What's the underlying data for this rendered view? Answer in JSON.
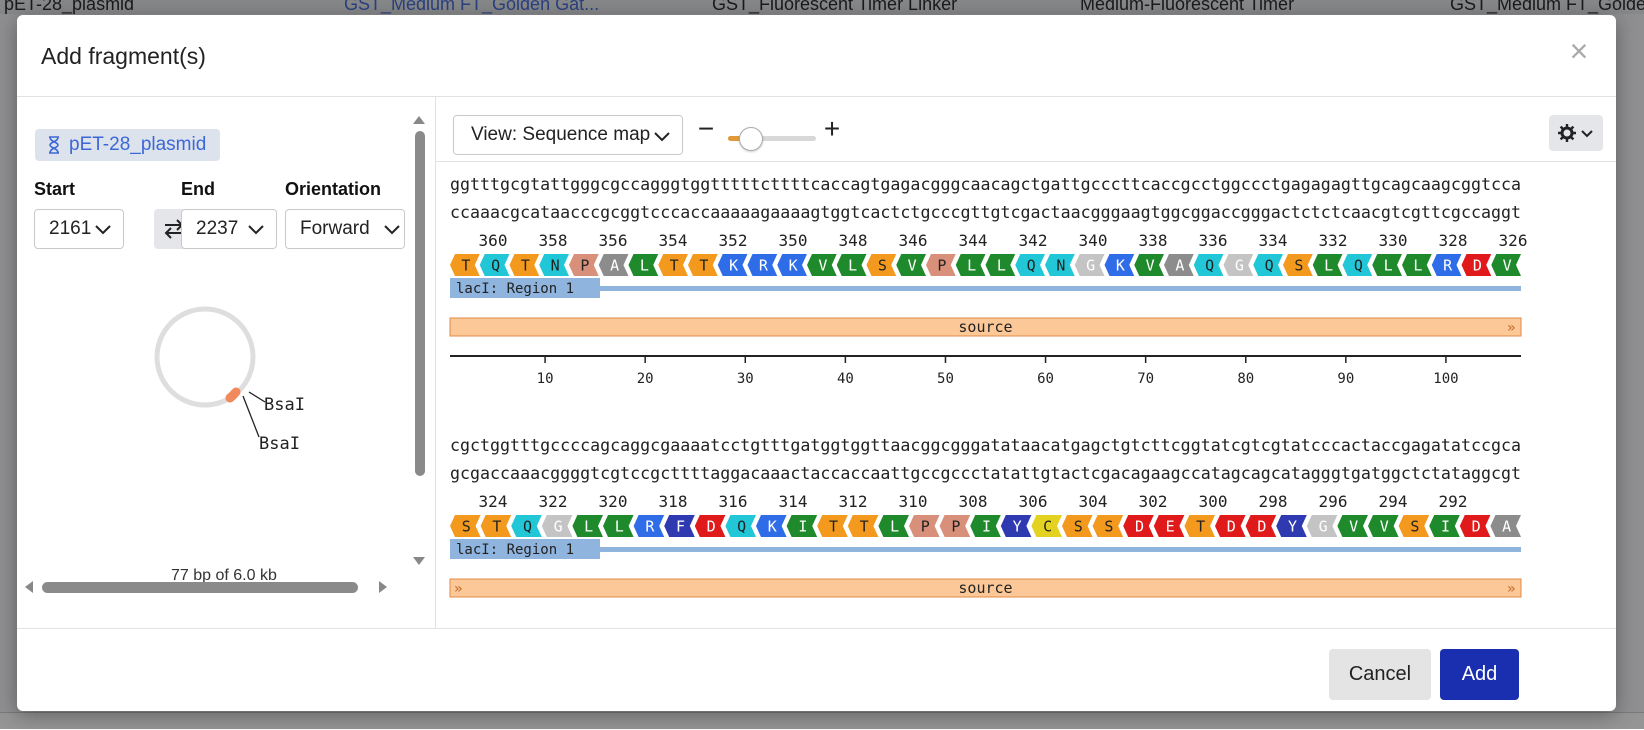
{
  "background": {
    "tabs": [
      {
        "label": "pET-28_plasmid"
      },
      {
        "label": "GST_Medium FT_Golden Gat..."
      },
      {
        "label": "GST_Fluorescent Timer Linker"
      },
      {
        "label": "Medium-Fluorescent Timer"
      },
      {
        "label": "GST_Medium FT_Golden"
      }
    ]
  },
  "modal": {
    "title": "Add fragment(s)",
    "close_label": "×"
  },
  "left": {
    "sequence_name": "pET-28_plasmid",
    "start_label": "Start",
    "start_value": "2161",
    "end_label": "End",
    "end_value": "2237",
    "orientation_label": "Orientation",
    "orientation_value": "Forward",
    "plasmid": {
      "sites": [
        "BsaI",
        "BsaI"
      ],
      "caption": "77 bp of 6.0 kb"
    }
  },
  "right": {
    "view_select": "View: Sequence map",
    "zoom_minus": "−",
    "zoom_plus": "+",
    "zoom_level": 0.25,
    "block1": {
      "top": "ggtttgcgtattgggcgccagggtggtttttcttttcaccagtgagacgggcaacagctgattgcccttcaccgcctggccctgagagagttgcagcaagcggtcca",
      "bottom": "ccaaacgcataacccgcggtcccaccaaaaagaaaagtggtcactctgcccgttgtcgactaacgggaagtggcggaccgggactctctcaacgtcgttcgccaggt",
      "aa_numbers": [
        "360",
        "358",
        "356",
        "354",
        "352",
        "350",
        "348",
        "346",
        "344",
        "342",
        "340",
        "338",
        "336",
        "334",
        "332",
        "330",
        "328",
        "326"
      ],
      "aa": [
        "T",
        "Q",
        "T",
        "N",
        "P",
        "A",
        "L",
        "T",
        "T",
        "K",
        "R",
        "K",
        "V",
        "L",
        "S",
        "V",
        "P",
        "L",
        "L",
        "Q",
        "N",
        "G",
        "K",
        "V",
        "A",
        "Q",
        "G",
        "Q",
        "S",
        "L",
        "Q",
        "L",
        "L",
        "R",
        "D",
        "V"
      ],
      "feature_label": "lacI: Region 1",
      "source_label": "source",
      "ruler": [
        "10",
        "20",
        "30",
        "40",
        "50",
        "60",
        "70",
        "80",
        "90",
        "100"
      ]
    },
    "block2": {
      "top": "cgctggtttgccccagcaggcgaaaatcctgtttgatggtggttaacggcgggatataacatgagctgtcttcggtatcgtcgtatcccactaccgagatatccgca",
      "bottom": "gcgaccaaacggggtcgtccgcttttaggacaaactaccaccaattgccgccctatattgtactcgacagaagccatagcagcatagggtgatggctctataggcgt",
      "aa_numbers": [
        "324",
        "322",
        "320",
        "318",
        "316",
        "314",
        "312",
        "310",
        "308",
        "306",
        "304",
        "302",
        "300",
        "298",
        "296",
        "294",
        "292"
      ],
      "aa": [
        "S",
        "T",
        "Q",
        "G",
        "L",
        "L",
        "R",
        "F",
        "D",
        "Q",
        "K",
        "I",
        "T",
        "T",
        "L",
        "P",
        "P",
        "I",
        "Y",
        "C",
        "S",
        "S",
        "D",
        "E",
        "T",
        "D",
        "D",
        "Y",
        "G",
        "V",
        "V",
        "S",
        "I",
        "D",
        "A"
      ],
      "feature_label": "lacI: Region 1",
      "source_label": "source"
    }
  },
  "footer": {
    "cancel_label": "Cancel",
    "add_label": "Add"
  },
  "colors": {
    "accent_blue": "#1a2fb0",
    "chip_text": "#3c67d8",
    "feature_blue": "#8fb4dd",
    "source_orange": "#fcc898",
    "marker_orange": "#f08a5d"
  }
}
